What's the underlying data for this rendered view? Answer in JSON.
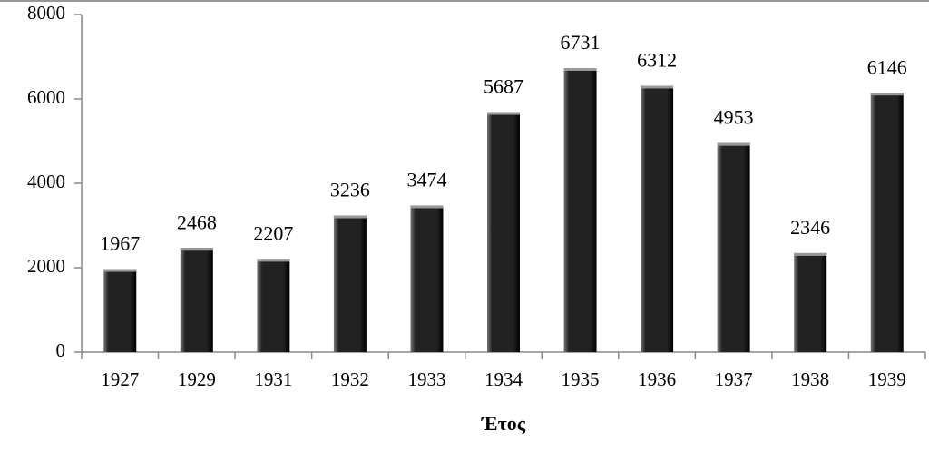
{
  "chart_data": {
    "type": "bar",
    "x_label": "Έτος",
    "categories": [
      "1927",
      "1929",
      "1931",
      "1932",
      "1933",
      "1934",
      "1935",
      "1936",
      "1937",
      "1938",
      "1939"
    ],
    "values": [
      1967,
      2468,
      2207,
      3236,
      3474,
      5687,
      6731,
      6312,
      4953,
      2346,
      6146
    ],
    "color": "#222222",
    "ylim": [
      0,
      8000
    ],
    "yticks": [
      0,
      2000,
      4000,
      6000,
      8000
    ],
    "grid": false
  }
}
